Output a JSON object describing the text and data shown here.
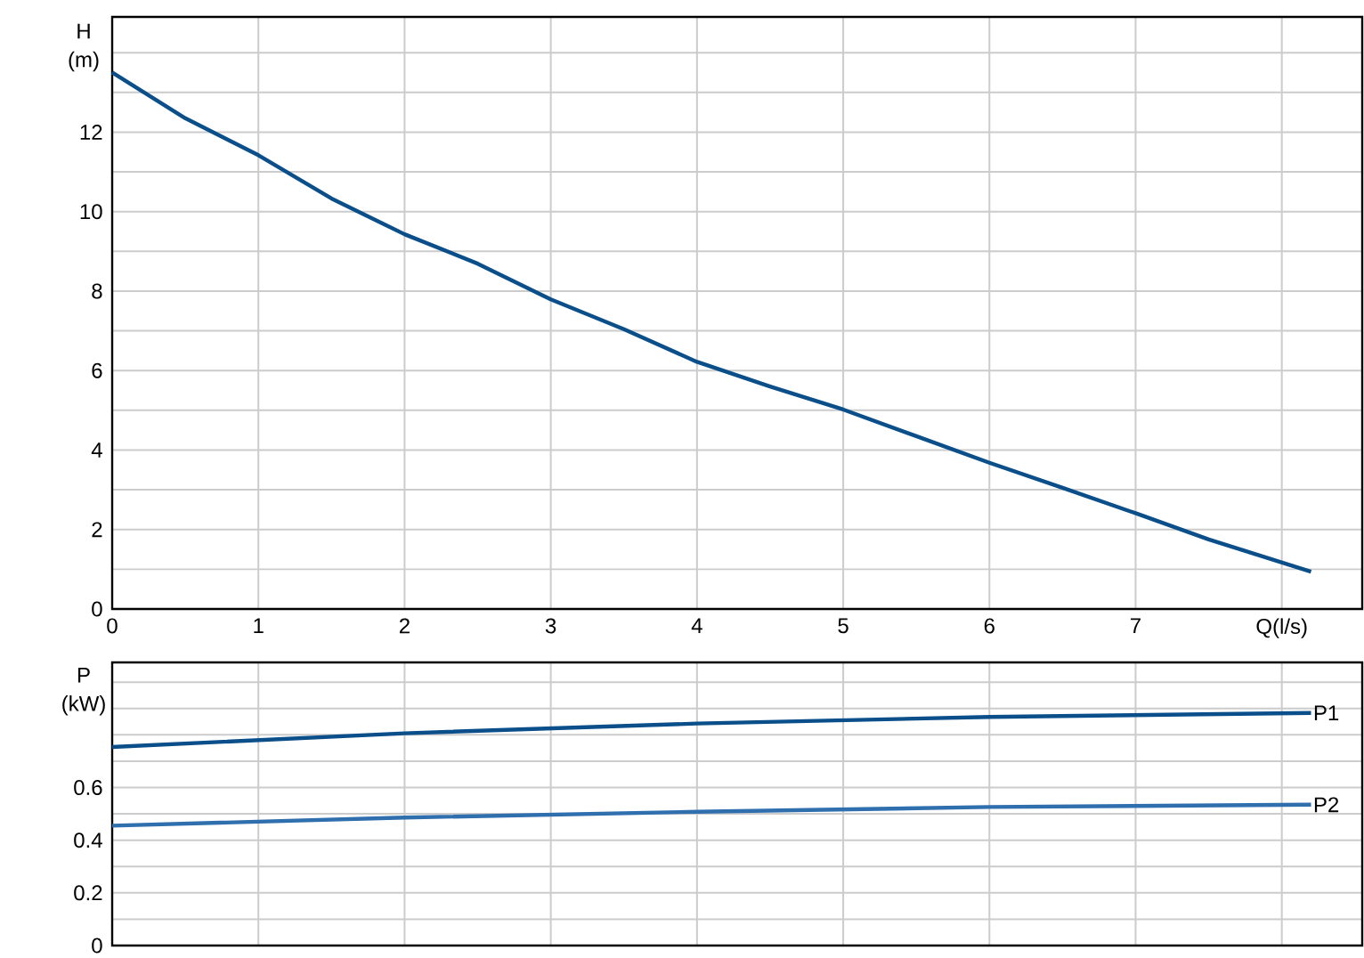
{
  "chart_data": [
    {
      "type": "line",
      "ylabel": "H (m)",
      "color": "#0b4f8a",
      "marker": "none",
      "grid": true,
      "x": [
        0,
        0.5,
        1,
        1.5,
        2,
        2.5,
        3,
        3.5,
        4,
        4.5,
        5,
        5.5,
        6,
        6.5,
        7,
        7.5,
        8.2
      ],
      "values": [
        13.5,
        12.35,
        11.42,
        10.33,
        9.43,
        8.69,
        7.79,
        7.04,
        6.22,
        5.6,
        5.02,
        4.35,
        3.68,
        3.05,
        2.41,
        1.75,
        0.94
      ],
      "xlim": [
        0,
        8.55
      ],
      "ylim": [
        0,
        14.9
      ],
      "xticks": [
        0,
        1,
        2,
        3,
        4,
        5,
        6,
        7,
        {
          "value": 8,
          "label": "Q(l/s)"
        }
      ],
      "yticks": [
        0,
        {
          "value": 1,
          "label": null
        },
        2,
        {
          "value": 3,
          "label": null
        },
        4,
        {
          "value": 5,
          "label": null
        },
        6,
        {
          "value": 7,
          "label": null
        },
        8,
        {
          "value": 9,
          "label": null
        },
        10,
        {
          "value": 11,
          "label": null
        },
        12,
        {
          "value": 13,
          "label": null
        },
        {
          "value": 14,
          "label": null
        }
      ]
    },
    {
      "type": "line",
      "ylabel": "P (kW)",
      "marker": "none",
      "grid": true,
      "tick_labels": "y",
      "series": [
        {
          "name": "P1",
          "color": "#0b4f8a",
          "x": [
            0,
            2,
            4,
            6,
            8.2
          ],
          "values": [
            0.754,
            0.806,
            0.843,
            0.868,
            0.883
          ]
        },
        {
          "name": "P2",
          "color": "#2f6fae",
          "x": [
            0,
            2,
            4,
            6,
            8.2
          ],
          "values": [
            0.455,
            0.486,
            0.508,
            0.526,
            0.535
          ]
        }
      ],
      "xlim": [
        0,
        8.55
      ],
      "ylim": [
        0,
        1.075
      ],
      "xticks": [
        {
          "value": 0,
          "label": null
        },
        {
          "value": 1,
          "label": null
        },
        {
          "value": 2,
          "label": null
        },
        {
          "value": 3,
          "label": null
        },
        {
          "value": 4,
          "label": null
        },
        {
          "value": 5,
          "label": null
        },
        {
          "value": 6,
          "label": null
        },
        {
          "value": 7,
          "label": null
        },
        {
          "value": 8,
          "label": null
        }
      ],
      "yticks": [
        0,
        {
          "value": 0.1,
          "label": null
        },
        0.2,
        {
          "value": 0.3,
          "label": null
        },
        0.4,
        {
          "value": 0.5,
          "label": null
        },
        0.6,
        {
          "value": 0.7,
          "label": null
        },
        {
          "value": 0.8,
          "label": null
        },
        {
          "value": 0.9,
          "label": null
        },
        {
          "value": 1.0,
          "label": null
        }
      ]
    }
  ]
}
